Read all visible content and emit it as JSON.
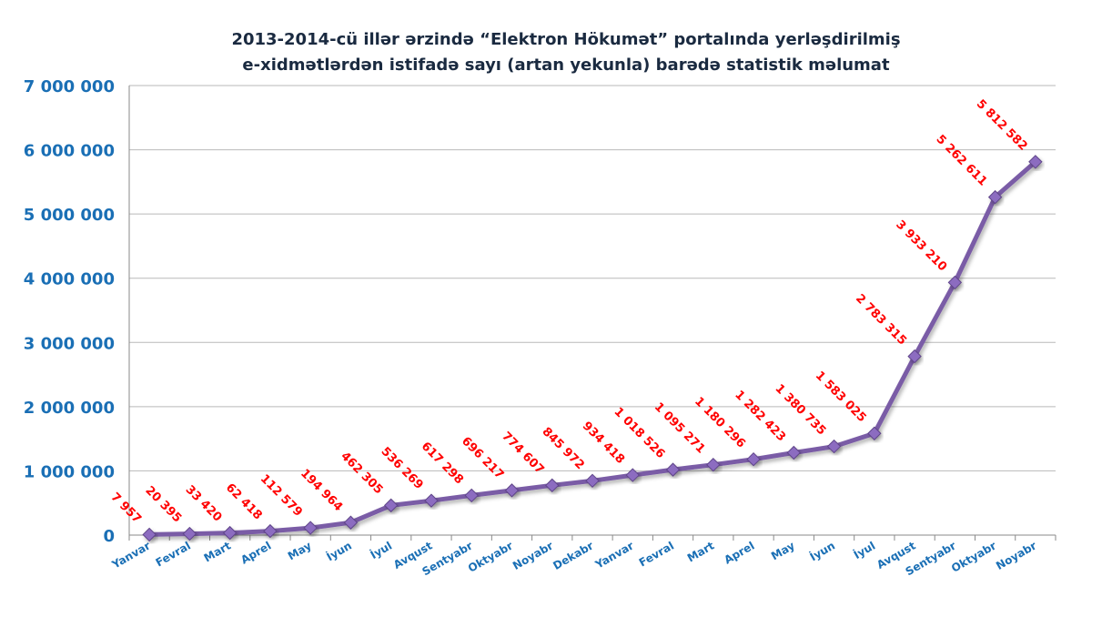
{
  "chart_data": {
    "type": "line",
    "title": [
      "2013-2014-cü illər ərzində “Elektron Hökumət” portalında yerləşdirilmiş",
      "e-xidmətlərdən  istifadə sayı (artan yekunla) barədə statistik məlumat"
    ],
    "xlabel": "",
    "ylabel": "",
    "ylim": [
      0,
      7000000
    ],
    "yticks": [
      0,
      1000000,
      2000000,
      3000000,
      4000000,
      5000000,
      6000000,
      7000000
    ],
    "ytick_labels": [
      "0",
      "1 000 000",
      "2 000 000",
      "3 000 000",
      "4 000 000",
      "5 000 000",
      "6 000 000",
      "7 000 000"
    ],
    "grid": true,
    "legend": "none",
    "categories": [
      "Yanvar",
      "Fevral",
      "Mart",
      "Aprel",
      "May",
      "İyun",
      "İyul",
      "Avqust",
      "Sentyabr",
      "Oktyabr",
      "Noyabr",
      "Dekabr",
      "Yanvar",
      "Fevral",
      "Mart",
      "Aprel",
      "May",
      "İyun",
      "İyul",
      "Avqust",
      "Sentyabr",
      "Oktyabr",
      "Noyabr"
    ],
    "series": [
      {
        "values": [
          7957,
          20395,
          33420,
          62418,
          112579,
          194964,
          462305,
          536269,
          617298,
          696217,
          774607,
          845972,
          934418,
          1018526,
          1095271,
          1180296,
          1282423,
          1380735,
          1583025,
          2783315,
          3933210,
          5262611,
          5812582
        ],
        "data_labels": [
          "7 957",
          "20 395",
          "33 420",
          "62 418",
          "112 579",
          "194 964",
          "462 305",
          "536 269",
          "617 298",
          "696 217",
          "774 607",
          "845 972",
          "934 418",
          "1 018 526",
          "1 095 271",
          "1 180 296",
          "1 282 423",
          "1 380 735",
          "1 583 025",
          "2 783 315",
          "3 933 210",
          "5 262 611",
          "5 812 582"
        ]
      }
    ],
    "colors": {
      "line": "#7a5ba6",
      "marker": "#8c6cc0",
      "marker_edge": "#5e4488",
      "data_label": "#ff0000",
      "tick_label": "#1a6fb5",
      "title": "#1a2a40",
      "grid": "#b9b9b9"
    }
  }
}
